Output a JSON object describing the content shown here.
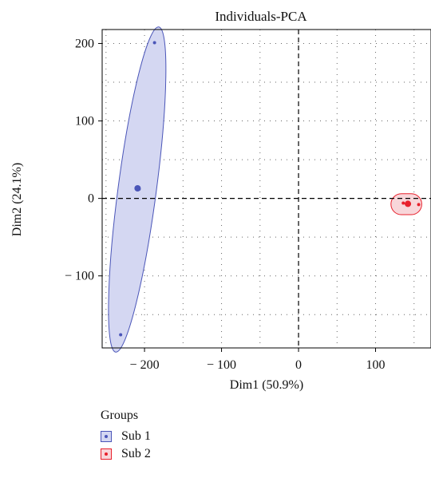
{
  "chart_data": {
    "type": "scatter",
    "title": "Individuals-PCA",
    "xlabel": "Dim1 (50.9%)",
    "ylabel": "Dim2 (24.1%)",
    "xlim": [
      -255,
      172
    ],
    "ylim": [
      -193,
      218
    ],
    "xticks": [
      -200,
      -100,
      0,
      100
    ],
    "xtick_labels": [
      "− 200",
      "− 100",
      "0",
      "100"
    ],
    "yticks": [
      -100,
      0,
      100,
      200
    ],
    "ytick_labels": [
      "− 100",
      "0",
      "100",
      "200"
    ],
    "grid": true,
    "legend_position": "bottom",
    "legend_title": "Groups",
    "series": [
      {
        "name": "Sub 1",
        "color": "#4a55b8",
        "fill": "#d4d7f2",
        "points": [
          [
            -187,
            201
          ],
          [
            -207,
            12
          ],
          [
            -231,
            -176
          ]
        ],
        "centroid": [
          -209,
          13
        ]
      },
      {
        "name": "Sub 2",
        "color": "#e8202c",
        "fill": "#f8d6da",
        "points": [
          [
            136,
            -6
          ],
          [
            144,
            -7
          ],
          [
            156,
            -8
          ],
          [
            140,
            -7
          ]
        ],
        "centroid": [
          142,
          -7
        ]
      }
    ]
  }
}
